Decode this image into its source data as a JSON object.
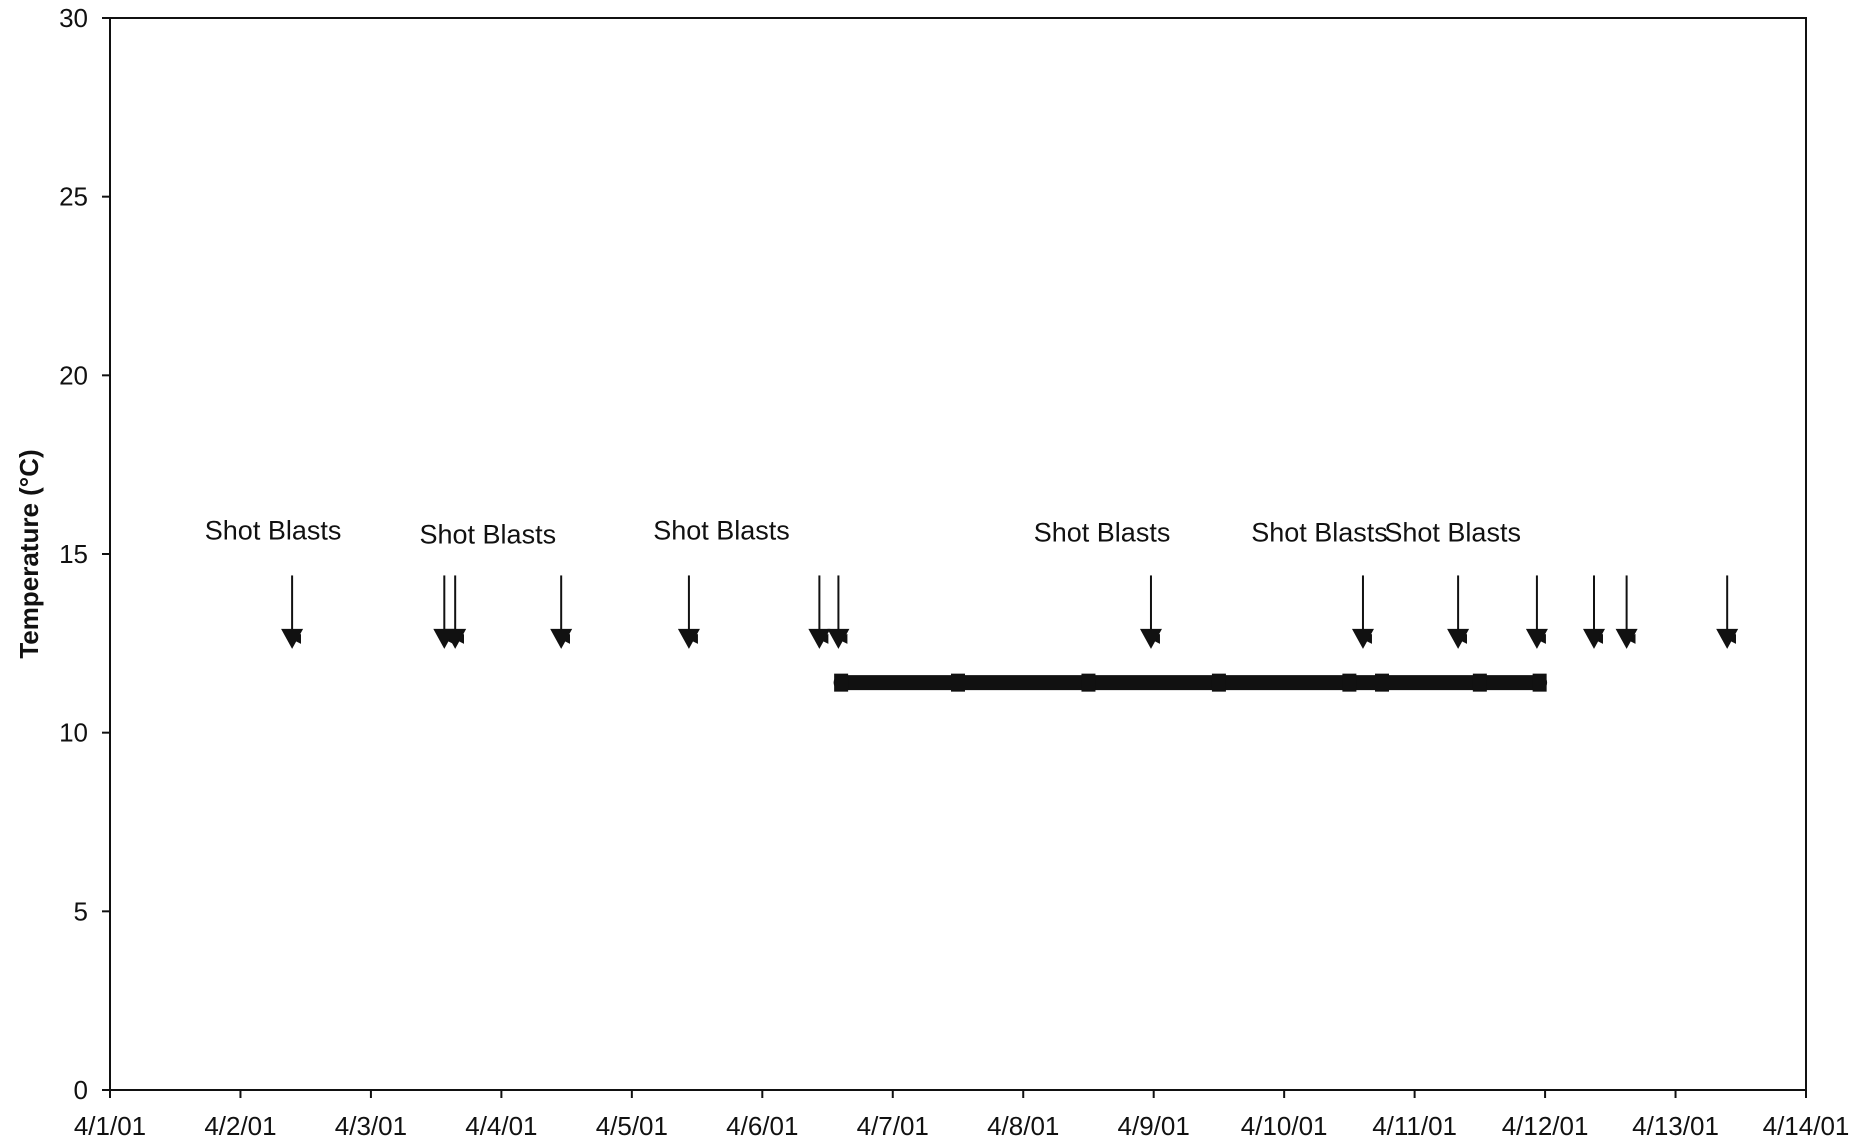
{
  "chart_data": {
    "type": "line",
    "title": "",
    "xlabel": "",
    "ylabel": "Temperature (°C)",
    "ylim": [
      0,
      30
    ],
    "xlim": [
      "2001-04-01",
      "2001-04-14"
    ],
    "y_ticks": [
      0,
      5,
      10,
      15,
      20,
      25,
      30
    ],
    "x_tick_labels": [
      "4/1/01",
      "4/2/01",
      "4/3/01",
      "4/4/01",
      "4/5/01",
      "4/6/01",
      "4/7/01",
      "4/8/01",
      "4/9/01",
      "4/10/01",
      "4/11/01",
      "4/12/01",
      "4/13/01",
      "4/14/01"
    ],
    "grid": false,
    "legend": "none",
    "colors": {
      "ink": "#111111",
      "background": "#ffffff"
    },
    "series": [
      {
        "x": [
          "2001-04-06 14:30",
          "2001-04-07 12:00",
          "2001-04-08 12:00",
          "2001-04-09 12:00",
          "2001-04-10 12:00",
          "2001-04-10 18:00",
          "2001-04-11 12:00",
          "2001-04-11 23:00"
        ],
        "y": [
          11.4,
          11.4,
          11.4,
          11.4,
          11.4,
          11.4,
          11.4,
          11.4
        ]
      }
    ],
    "event_markers": {
      "y": 12.4,
      "x": [
        "2001-04-02 09:30",
        "2001-04-03 13:30",
        "2001-04-03 15:30",
        "2001-04-04 11:00",
        "2001-04-05 10:30",
        "2001-04-06 10:30",
        "2001-04-06 14:00",
        "2001-04-08 23:30",
        "2001-04-10 14:30",
        "2001-04-11 08:00",
        "2001-04-11 22:30",
        "2001-04-12 09:00",
        "2001-04-12 15:00",
        "2001-04-13 09:30"
      ]
    },
    "annotations": [
      {
        "text": "Shot Blasts",
        "x": "2001-04-02 06:00",
        "y": 15.4
      },
      {
        "text": "Shot Blasts",
        "x": "2001-04-03 21:30",
        "y": 15.3
      },
      {
        "text": "Shot Blasts",
        "x": "2001-04-05 16:30",
        "y": 15.4
      },
      {
        "text": "Shot Blasts",
        "x": "2001-04-08 14:30",
        "y": 15.35
      },
      {
        "text": "Shot Blasts",
        "x": "2001-04-10 06:30",
        "y": 15.35
      },
      {
        "text": "Shot Blasts",
        "x": "2001-04-11 07:00",
        "y": 15.35
      }
    ]
  }
}
